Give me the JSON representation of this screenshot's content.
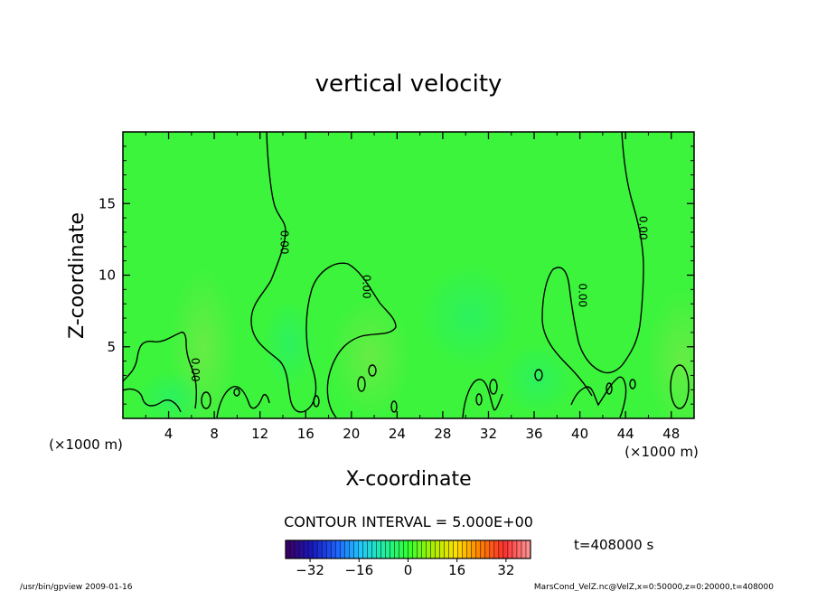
{
  "chart_data": {
    "type": "heatmap",
    "title": "vertical velocity",
    "xlabel": "X-coordinate",
    "ylabel": "Z-coordinate",
    "x_unit_left": "(×1000 m)",
    "x_unit_right": "(×1000 m)",
    "xlim": [
      0,
      50
    ],
    "ylim": [
      0,
      20
    ],
    "x_ticks": [
      4,
      8,
      12,
      16,
      20,
      24,
      28,
      32,
      36,
      40,
      44,
      48
    ],
    "y_ticks": [
      5,
      10,
      15
    ],
    "contour_interval": "CONTOUR INTERVAL = 5.000E+00",
    "contour_labels": [
      {
        "x": 13.8,
        "z": 12.3,
        "text": "0.00"
      },
      {
        "x": 21.0,
        "z": 9.2,
        "text": "0.00"
      },
      {
        "x": 39.9,
        "z": 8.6,
        "text": "0.00"
      },
      {
        "x": 45.2,
        "z": 13.3,
        "text": "0.00"
      },
      {
        "x": 6.0,
        "z": 3.4,
        "text": "0.00"
      }
    ],
    "colorbar": {
      "ticks": [
        -32,
        -16,
        0,
        16,
        32
      ],
      "range": [
        -40,
        40
      ],
      "colors": [
        "#3a0066",
        "#1818c0",
        "#1e60ff",
        "#20c8ff",
        "#20f0a0",
        "#30ff30",
        "#a8f000",
        "#ffe000",
        "#ff8000",
        "#ff3030",
        "#ff9090"
      ]
    },
    "field_color": "#3cf43c",
    "time_label": "t=408000 s"
  },
  "footer": {
    "left": "/usr/bin/gpview  2009-01-16",
    "right": "MarsCond_VelZ.nc@VelZ,x=0:50000,z=0:20000,t=408000"
  }
}
